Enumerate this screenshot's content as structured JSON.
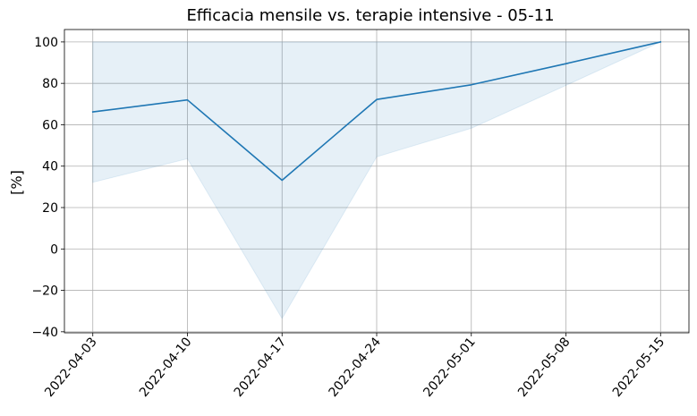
{
  "chart_data": {
    "type": "line",
    "title": "Efficacia mensile vs. terapie intensive - 05-11",
    "xlabel": "",
    "ylabel": "[%]",
    "x": [
      "2022-04-03",
      "2022-04-10",
      "2022-04-17",
      "2022-04-24",
      "2022-05-01",
      "2022-05-08",
      "2022-05-15"
    ],
    "x_ticks": [
      "2022-04-03",
      "2022-04-10",
      "2022-04-17",
      "2022-04-24",
      "2022-05-01",
      "2022-05-08",
      "2022-05-15"
    ],
    "y_ticks": [
      100,
      80,
      60,
      40,
      20,
      0,
      -20,
      -40
    ],
    "y_tick_labels": [
      "100",
      "80",
      "60",
      "40",
      "20",
      "0",
      "−20",
      "−40"
    ],
    "ylim": [
      -40.5,
      106
    ],
    "grid": true,
    "series": [
      {
        "values": [
          66.2,
          72.0,
          33.2,
          72.2,
          79.3,
          89.5,
          100.0
        ],
        "band_lower": [
          32.2,
          43.6,
          -33.6,
          44.5,
          58.3,
          79.0,
          100.0
        ],
        "band_upper": [
          100.0,
          100.0,
          100.0,
          100.0,
          100.0,
          100.0,
          100.0
        ],
        "color": "#1f77b4",
        "band_color": "#1f77b4"
      }
    ]
  }
}
